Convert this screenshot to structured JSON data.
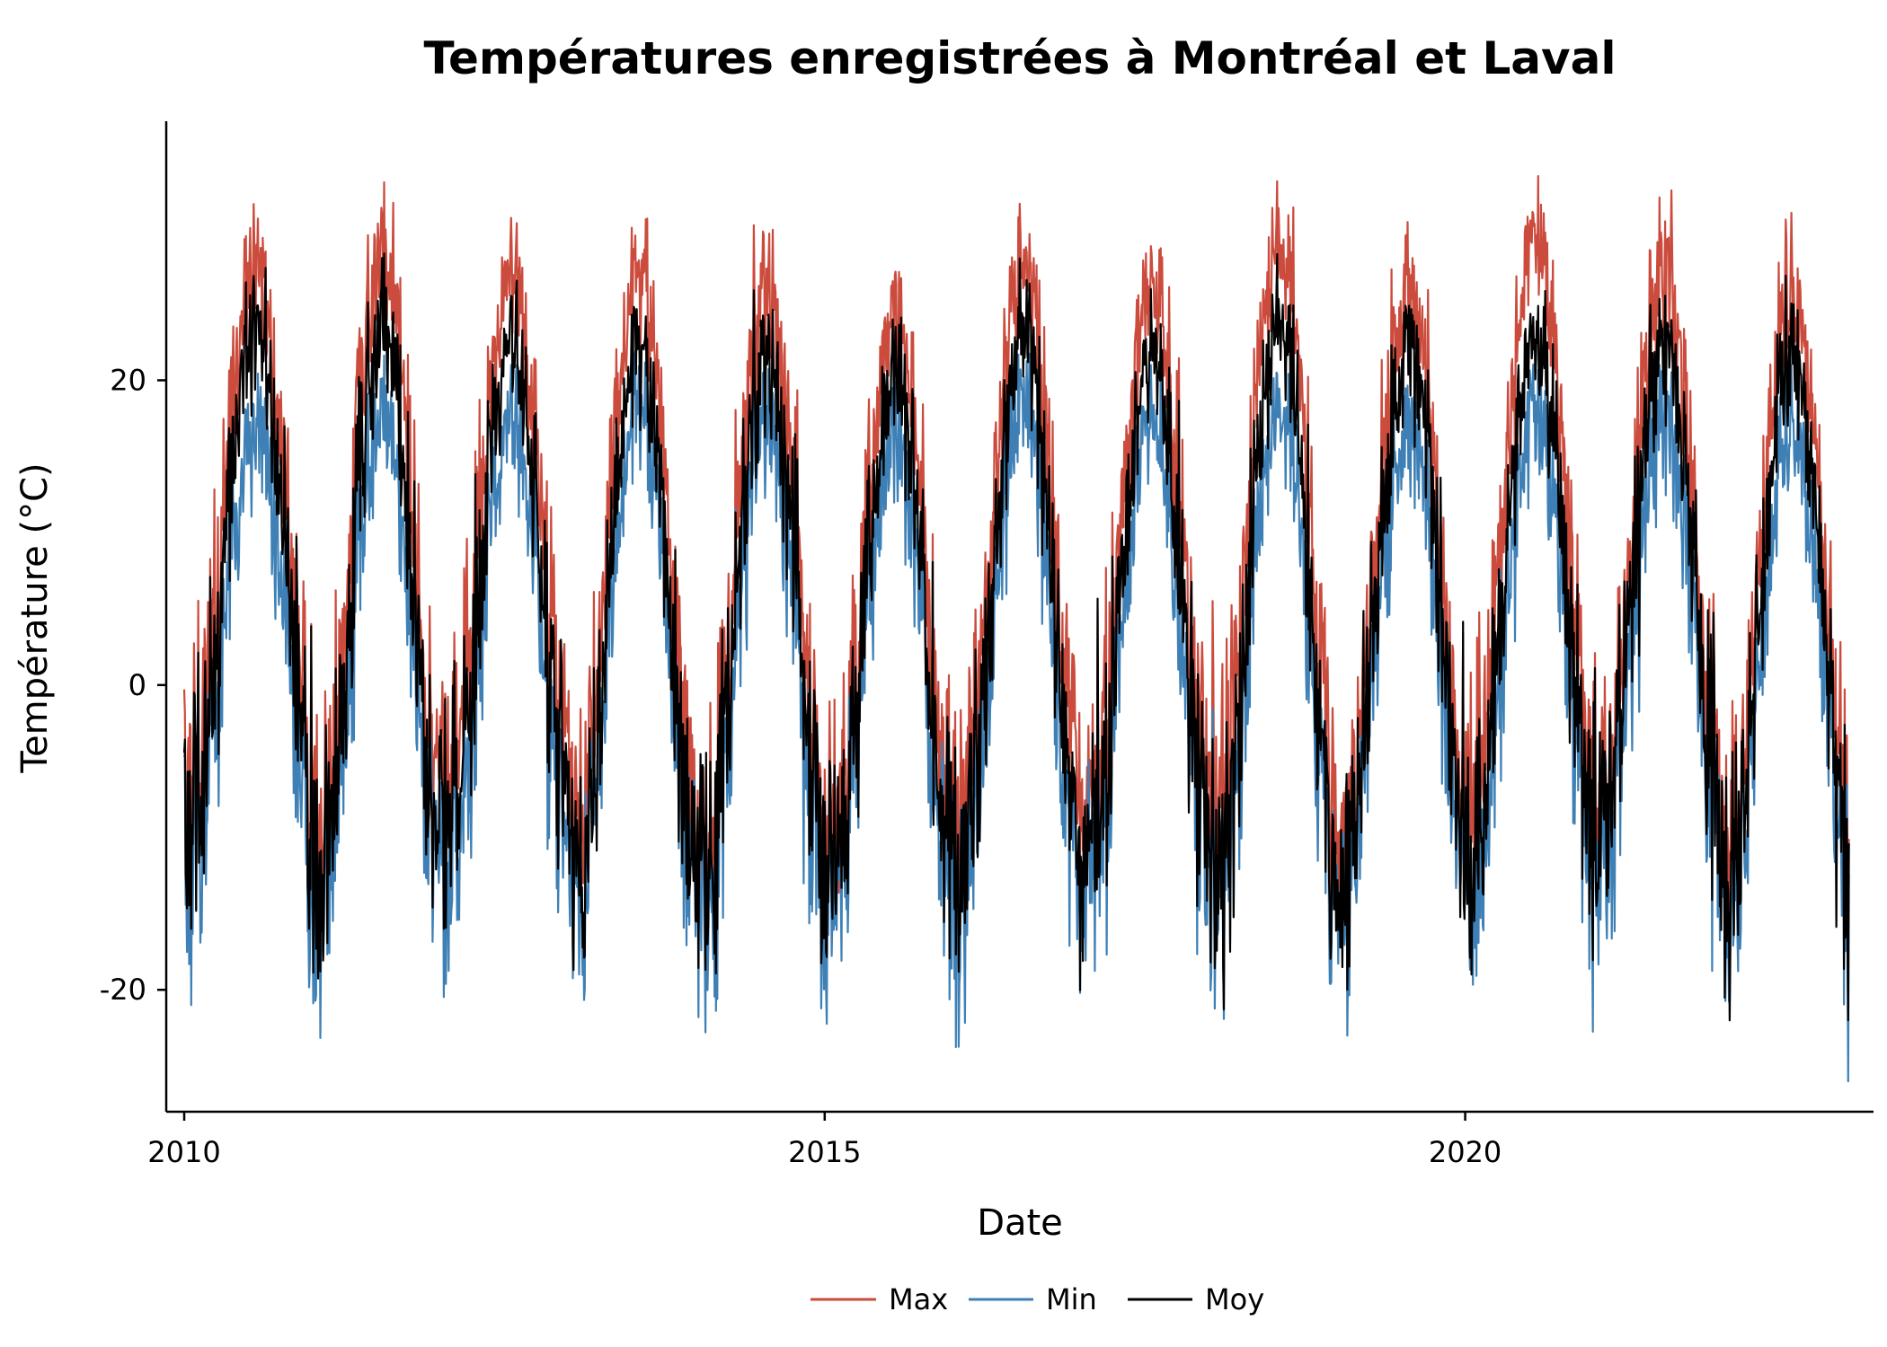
{
  "chart_data": {
    "type": "line",
    "title": "Températures enregistrées à Montréal et Laval",
    "xlabel": "Date",
    "ylabel": "Température (°C)",
    "x_range": [
      "2010-01-01",
      "2022-12-31"
    ],
    "x_ticks": [
      "2010",
      "2015",
      "2020"
    ],
    "ylim": [
      -28,
      37
    ],
    "y_ticks": [
      -20,
      0,
      20
    ],
    "grid": false,
    "legend_position": "bottom",
    "series": [
      {
        "name": "Max",
        "color": "#cb4b3d",
        "summary": "daily maximum temperature",
        "yearly": [
          {
            "year": 2010,
            "winter_low": -12,
            "summer_peak": 34
          },
          {
            "year": 2011,
            "winter_low": -17,
            "summer_peak": 35
          },
          {
            "year": 2012,
            "winter_low": -10,
            "summer_peak": 33
          },
          {
            "year": 2013,
            "winter_low": -16,
            "summer_peak": 33
          },
          {
            "year": 2014,
            "winter_low": -19,
            "summer_peak": 32
          },
          {
            "year": 2015,
            "winter_low": -17,
            "summer_peak": 30
          },
          {
            "year": 2016,
            "winter_low": -14,
            "summer_peak": 33
          },
          {
            "year": 2017,
            "winter_low": -14,
            "summer_peak": 32
          },
          {
            "year": 2018,
            "winter_low": -15,
            "summer_peak": 35
          },
          {
            "year": 2019,
            "winter_low": -16,
            "summer_peak": 32
          },
          {
            "year": 2020,
            "winter_low": -12,
            "summer_peak": 36
          },
          {
            "year": 2021,
            "winter_low": -14,
            "summer_peak": 33
          },
          {
            "year": 2022,
            "winter_low": -17,
            "summer_peak": 32
          }
        ]
      },
      {
        "name": "Min",
        "color": "#3e80b5",
        "summary": "daily minimum temperature",
        "yearly": [
          {
            "year": 2010,
            "winter_low": -21,
            "summer_peak": 21
          },
          {
            "year": 2011,
            "winter_low": -27,
            "summer_peak": 22
          },
          {
            "year": 2012,
            "winter_low": -22,
            "summer_peak": 21
          },
          {
            "year": 2013,
            "winter_low": -27,
            "summer_peak": 22
          },
          {
            "year": 2014,
            "winter_low": -27,
            "summer_peak": 21
          },
          {
            "year": 2015,
            "winter_low": -26,
            "summer_peak": 20
          },
          {
            "year": 2016,
            "winter_low": -27,
            "summer_peak": 22
          },
          {
            "year": 2017,
            "winter_low": -23,
            "summer_peak": 21
          },
          {
            "year": 2018,
            "winter_low": -26,
            "summer_peak": 22
          },
          {
            "year": 2019,
            "winter_low": -23,
            "summer_peak": 21
          },
          {
            "year": 2020,
            "winter_low": -23,
            "summer_peak": 22
          },
          {
            "year": 2021,
            "winter_low": -20,
            "summer_peak": 21
          },
          {
            "year": 2022,
            "winter_low": -26,
            "summer_peak": 21
          }
        ]
      },
      {
        "name": "Moy",
        "color": "#000000",
        "summary": "daily mean temperature",
        "yearly": [
          {
            "year": 2010,
            "winter_low": -16,
            "summer_peak": 29
          },
          {
            "year": 2011,
            "winter_low": -23,
            "summer_peak": 29
          },
          {
            "year": 2012,
            "winter_low": -16,
            "summer_peak": 27
          },
          {
            "year": 2013,
            "winter_low": -24,
            "summer_peak": 27
          },
          {
            "year": 2014,
            "winter_low": -22,
            "summer_peak": 26
          },
          {
            "year": 2015,
            "winter_low": -22,
            "summer_peak": 25
          },
          {
            "year": 2016,
            "winter_low": -23,
            "summer_peak": 28
          },
          {
            "year": 2017,
            "winter_low": -19,
            "summer_peak": 26
          },
          {
            "year": 2018,
            "winter_low": -24,
            "summer_peak": 29
          },
          {
            "year": 2019,
            "winter_low": -20,
            "summer_peak": 27
          },
          {
            "year": 2020,
            "winter_low": -19,
            "summer_peak": 28
          },
          {
            "year": 2021,
            "winter_low": -17,
            "summer_peak": 27
          },
          {
            "year": 2022,
            "winter_low": -22,
            "summer_peak": 27
          }
        ]
      }
    ]
  }
}
